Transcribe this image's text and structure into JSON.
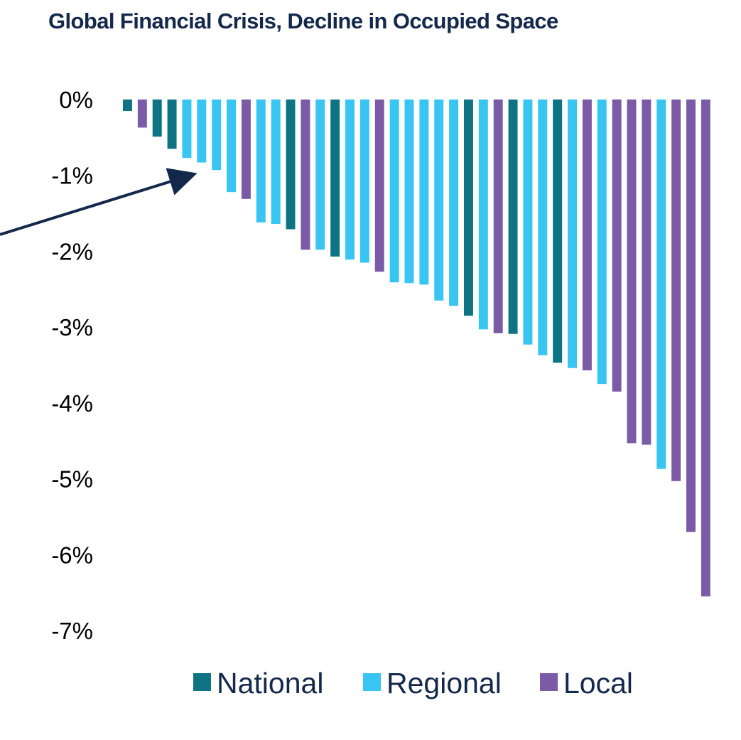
{
  "chart_data": {
    "type": "bar",
    "title": "Global Financial Crisis, Decline in Occupied Space",
    "xlabel": "",
    "ylabel": "",
    "ylim": [
      -7,
      0
    ],
    "yticks": [
      {
        "value": 0,
        "label": "0%"
      },
      {
        "value": -1,
        "label": "-1%"
      },
      {
        "value": -2,
        "label": "-2%"
      },
      {
        "value": -3,
        "label": "-3%"
      },
      {
        "value": -4,
        "label": "-4%"
      },
      {
        "value": -5,
        "label": "-5%"
      },
      {
        "value": -6,
        "label": "-6%"
      },
      {
        "value": -7,
        "label": "-7%"
      }
    ],
    "grid": false,
    "legend_position": "bottom",
    "series": [
      {
        "name": "National",
        "color": "#0e7483"
      },
      {
        "name": "Regional",
        "color": "#38c5f1"
      },
      {
        "name": "Local",
        "color": "#7b5aa6"
      }
    ],
    "bars": [
      {
        "series": "National",
        "value": -0.15
      },
      {
        "series": "Local",
        "value": -0.37
      },
      {
        "series": "National",
        "value": -0.49
      },
      {
        "series": "National",
        "value": -0.65
      },
      {
        "series": "Regional",
        "value": -0.77
      },
      {
        "series": "Regional",
        "value": -0.83
      },
      {
        "series": "Regional",
        "value": -0.93
      },
      {
        "series": "Regional",
        "value": -1.22
      },
      {
        "series": "Local",
        "value": -1.31
      },
      {
        "series": "Regional",
        "value": -1.62
      },
      {
        "series": "Regional",
        "value": -1.64
      },
      {
        "series": "National",
        "value": -1.71
      },
      {
        "series": "Local",
        "value": -1.98
      },
      {
        "series": "Regional",
        "value": -1.98
      },
      {
        "series": "National",
        "value": -2.07
      },
      {
        "series": "Regional",
        "value": -2.11
      },
      {
        "series": "Regional",
        "value": -2.15
      },
      {
        "series": "Local",
        "value": -2.27
      },
      {
        "series": "Regional",
        "value": -2.41
      },
      {
        "series": "Regional",
        "value": -2.42
      },
      {
        "series": "Regional",
        "value": -2.44
      },
      {
        "series": "Regional",
        "value": -2.65
      },
      {
        "series": "Regional",
        "value": -2.72
      },
      {
        "series": "National",
        "value": -2.85
      },
      {
        "series": "Regional",
        "value": -3.03
      },
      {
        "series": "Local",
        "value": -3.08
      },
      {
        "series": "National",
        "value": -3.09
      },
      {
        "series": "Regional",
        "value": -3.23
      },
      {
        "series": "Regional",
        "value": -3.37
      },
      {
        "series": "National",
        "value": -3.47
      },
      {
        "series": "Regional",
        "value": -3.54
      },
      {
        "series": "Local",
        "value": -3.57
      },
      {
        "series": "Regional",
        "value": -3.75
      },
      {
        "series": "Local",
        "value": -3.85
      },
      {
        "series": "Local",
        "value": -4.53
      },
      {
        "series": "Local",
        "value": -4.55
      },
      {
        "series": "Regional",
        "value": -4.87
      },
      {
        "series": "Local",
        "value": -5.03
      },
      {
        "series": "Local",
        "value": -5.7
      },
      {
        "series": "Local",
        "value": -6.55
      }
    ]
  }
}
